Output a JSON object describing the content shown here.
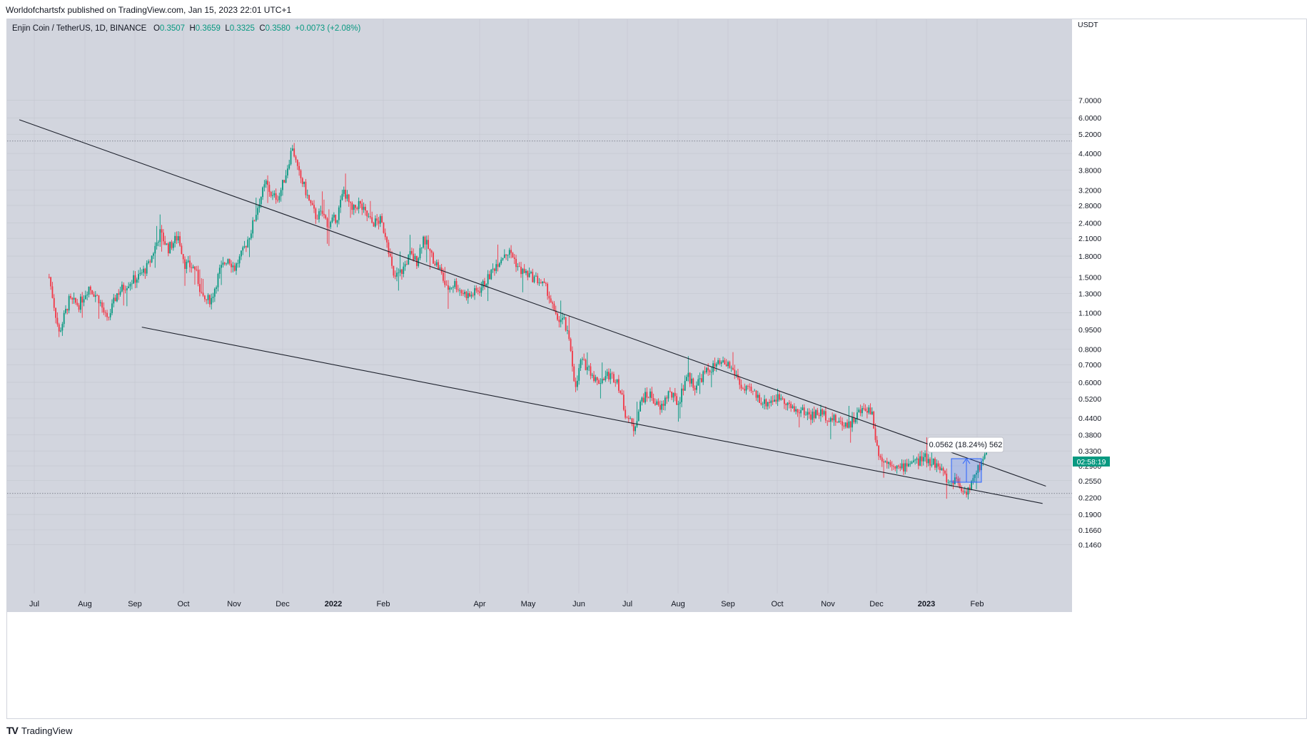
{
  "header": {
    "published_text": "Worldofchartsfx published on TradingView.com, Jan 15, 2023 22:01 UTC+1"
  },
  "legend": {
    "symbol_text": "Enjin Coin / TetherUS, 1D, BINANCE",
    "o_label": "O",
    "o_value": "0.3507",
    "h_label": "H",
    "h_value": "0.3659",
    "l_label": "L",
    "l_value": "0.3325",
    "c_label": "C",
    "c_value": "0.3580",
    "change": "+0.0073 (+2.08%)"
  },
  "footer": {
    "brand": "TradingView",
    "logo_text": "TV"
  },
  "colors": {
    "background": "#d2d5de",
    "up": "#089981",
    "down": "#f23645",
    "trendline": "#1e222d",
    "measure": "#2962ff",
    "price_badge": "#089981"
  },
  "measure": {
    "label": "0.0562 (18.24%) 562"
  },
  "price_badge": {
    "text": "02:58:19"
  },
  "chart_data": {
    "type": "candlestick",
    "title": "Enjin Coin / TetherUS, 1D, BINANCE",
    "yscale": "log",
    "y_unit": "USDT",
    "ylim": [
      0.135,
      7.4
    ],
    "y_ticks": [
      "7.0000",
      "6.0000",
      "5.2000",
      "4.4000",
      "3.8000",
      "3.2000",
      "2.8000",
      "2.4000",
      "2.1000",
      "1.8000",
      "1.5000",
      "1.3000",
      "1.1000",
      "0.9500",
      "0.8000",
      "0.7000",
      "0.6000",
      "0.5200",
      "0.4400",
      "0.3800",
      "0.3300",
      "0.2900",
      "0.2550",
      "0.2200",
      "0.1900",
      "0.1660",
      "0.1460"
    ],
    "x_ticks": [
      "Jul",
      "Aug",
      "Sep",
      "Oct",
      "Nov",
      "Dec",
      "2022",
      "Feb",
      "Apr",
      "May",
      "Jun",
      "Jul",
      "Aug",
      "Sep",
      "Oct",
      "Nov",
      "Dec",
      "2023",
      "Feb"
    ],
    "x_tick_positions": [
      48,
      119,
      189,
      257,
      328,
      396,
      467,
      537,
      672,
      740,
      811,
      879,
      950,
      1020,
      1089,
      1160,
      1228,
      1298,
      1369
    ],
    "horizontal_levels": [
      4.9,
      0.228
    ],
    "trendlines": [
      {
        "name": "upper",
        "from": [
          "2021-06-09",
          5.9
        ],
        "to": [
          "2023-02-19",
          0.243
        ]
      },
      {
        "name": "lower",
        "from": [
          "2021-08-22",
          0.97
        ],
        "to": [
          "2023-02-17",
          0.209
        ]
      }
    ],
    "path": [
      [
        "2021-06-27",
        1.5
      ],
      [
        "2021-07-03",
        0.92
      ],
      [
        "2021-07-09",
        1.22
      ],
      [
        "2021-07-15",
        1.18
      ],
      [
        "2021-07-21",
        1.38
      ],
      [
        "2021-07-27",
        1.24
      ],
      [
        "2021-08-01",
        1.02
      ],
      [
        "2021-08-07",
        1.3
      ],
      [
        "2021-08-14",
        1.43
      ],
      [
        "2021-08-20",
        1.5
      ],
      [
        "2021-08-26",
        1.66
      ],
      [
        "2021-09-02",
        2.2
      ],
      [
        "2021-09-07",
        1.92
      ],
      [
        "2021-09-13",
        2.15
      ],
      [
        "2021-09-17",
        1.68
      ],
      [
        "2021-09-23",
        1.62
      ],
      [
        "2021-09-28",
        1.22
      ],
      [
        "2021-10-03",
        1.24
      ],
      [
        "2021-10-08",
        1.58
      ],
      [
        "2021-10-13",
        1.78
      ],
      [
        "2021-10-17",
        1.62
      ],
      [
        "2021-10-22",
        1.86
      ],
      [
        "2021-10-27",
        2.25
      ],
      [
        "2021-11-01",
        2.92
      ],
      [
        "2021-11-05",
        3.4
      ],
      [
        "2021-11-09",
        3.0
      ],
      [
        "2021-11-13",
        3.05
      ],
      [
        "2021-11-17",
        3.7
      ],
      [
        "2021-11-21",
        4.7
      ],
      [
        "2021-11-24",
        3.8
      ],
      [
        "2021-11-28",
        3.3
      ],
      [
        "2021-12-01",
        2.9
      ],
      [
        "2021-12-05",
        2.55
      ],
      [
        "2021-12-09",
        2.6
      ],
      [
        "2021-12-13",
        2.35
      ],
      [
        "2021-12-18",
        2.55
      ],
      [
        "2021-12-22",
        3.2
      ],
      [
        "2021-12-27",
        2.65
      ],
      [
        "2021-12-31",
        2.85
      ],
      [
        "2022-01-04",
        2.6
      ],
      [
        "2022-01-08",
        2.4
      ],
      [
        "2022-01-13",
        2.45
      ],
      [
        "2022-01-17",
        2.1
      ],
      [
        "2022-01-21",
        1.48
      ],
      [
        "2022-01-26",
        1.58
      ],
      [
        "2022-01-31",
        1.82
      ],
      [
        "2022-02-04",
        1.72
      ],
      [
        "2022-02-08",
        2.12
      ],
      [
        "2022-02-13",
        1.8
      ],
      [
        "2022-02-18",
        1.6
      ],
      [
        "2022-02-22",
        1.35
      ],
      [
        "2022-02-27",
        1.42
      ],
      [
        "2022-03-03",
        1.32
      ],
      [
        "2022-03-08",
        1.27
      ],
      [
        "2022-03-14",
        1.35
      ],
      [
        "2022-03-19",
        1.48
      ],
      [
        "2022-03-24",
        1.68
      ],
      [
        "2022-03-29",
        1.85
      ],
      [
        "2022-04-02",
        1.85
      ],
      [
        "2022-04-07",
        1.6
      ],
      [
        "2022-04-13",
        1.52
      ],
      [
        "2022-04-19",
        1.45
      ],
      [
        "2022-04-24",
        1.33
      ],
      [
        "2022-04-29",
        1.05
      ],
      [
        "2022-05-04",
        1.02
      ],
      [
        "2022-05-08",
        0.8
      ],
      [
        "2022-05-11",
        0.56
      ],
      [
        "2022-05-14",
        0.72
      ],
      [
        "2022-05-19",
        0.68
      ],
      [
        "2022-05-24",
        0.6
      ],
      [
        "2022-05-30",
        0.64
      ],
      [
        "2022-06-05",
        0.62
      ],
      [
        "2022-06-10",
        0.46
      ],
      [
        "2022-06-15",
        0.4
      ],
      [
        "2022-06-20",
        0.52
      ],
      [
        "2022-06-25",
        0.54
      ],
      [
        "2022-07-01",
        0.47
      ],
      [
        "2022-07-06",
        0.55
      ],
      [
        "2022-07-12",
        0.5
      ],
      [
        "2022-07-17",
        0.64
      ],
      [
        "2022-07-22",
        0.58
      ],
      [
        "2022-07-27",
        0.64
      ],
      [
        "2022-08-01",
        0.68
      ],
      [
        "2022-08-06",
        0.7
      ],
      [
        "2022-08-11",
        0.7
      ],
      [
        "2022-08-16",
        0.64
      ],
      [
        "2022-08-20",
        0.56
      ],
      [
        "2022-08-26",
        0.55
      ],
      [
        "2022-09-02",
        0.5
      ],
      [
        "2022-09-08",
        0.52
      ],
      [
        "2022-09-13",
        0.53
      ],
      [
        "2022-09-19",
        0.47
      ],
      [
        "2022-09-24",
        0.47
      ],
      [
        "2022-09-30",
        0.45
      ],
      [
        "2022-10-06",
        0.46
      ],
      [
        "2022-10-12",
        0.44
      ],
      [
        "2022-10-18",
        0.42
      ],
      [
        "2022-10-24",
        0.42
      ],
      [
        "2022-10-29",
        0.46
      ],
      [
        "2022-11-03",
        0.48
      ],
      [
        "2022-11-06",
        0.46
      ],
      [
        "2022-11-09",
        0.34
      ],
      [
        "2022-11-13",
        0.3
      ],
      [
        "2022-11-18",
        0.3
      ],
      [
        "2022-11-23",
        0.28
      ],
      [
        "2022-11-28",
        0.3
      ],
      [
        "2022-12-03",
        0.3
      ],
      [
        "2022-12-08",
        0.31
      ],
      [
        "2022-12-13",
        0.3
      ],
      [
        "2022-12-18",
        0.28
      ],
      [
        "2022-12-22",
        0.25
      ],
      [
        "2022-12-27",
        0.26
      ],
      [
        "2022-12-31",
        0.23
      ],
      [
        "2023-01-04",
        0.24
      ],
      [
        "2023-01-08",
        0.27
      ],
      [
        "2023-01-12",
        0.31
      ],
      [
        "2023-01-15",
        0.358
      ]
    ]
  }
}
